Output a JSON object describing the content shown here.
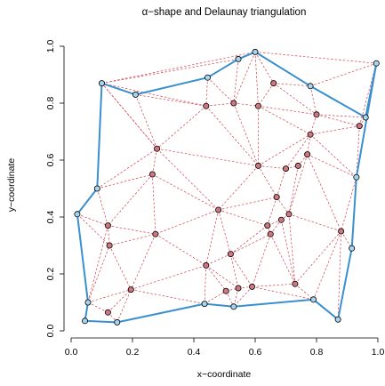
{
  "chart_data": {
    "type": "scatter",
    "title": "α−shape and Delaunay triangulation",
    "xlabel": "x−coordinate",
    "ylabel": "y−coordinate",
    "xlim": [
      0.0,
      1.0
    ],
    "ylim": [
      0.0,
      1.0
    ],
    "x_ticks": [
      0.0,
      0.2,
      0.4,
      0.6,
      0.8,
      1.0
    ],
    "y_ticks": [
      0.0,
      0.2,
      0.4,
      0.6,
      0.8,
      1.0
    ],
    "x_tick_labels": [
      "0.0",
      "0.2",
      "0.4",
      "0.6",
      "0.8",
      "1.0"
    ],
    "y_tick_labels": [
      "0.0",
      "0.2",
      "0.4",
      "0.6",
      "0.8",
      "1.0"
    ],
    "grid": false,
    "colors": {
      "alpha_shape": "#3a8fce",
      "delaunay": "#d04050",
      "hull_point_fill": "#a8d4ee",
      "interior_point_fill": "#d07880"
    },
    "hull_points": [
      [
        0.1,
        0.87
      ],
      [
        0.21,
        0.83
      ],
      [
        0.445,
        0.89
      ],
      [
        0.545,
        0.955
      ],
      [
        0.6,
        0.98
      ],
      [
        0.78,
        0.86
      ],
      [
        0.96,
        0.75
      ],
      [
        0.995,
        0.94
      ],
      [
        0.93,
        0.54
      ],
      [
        0.915,
        0.29
      ],
      [
        0.87,
        0.04
      ],
      [
        0.79,
        0.11
      ],
      [
        0.53,
        0.085
      ],
      [
        0.435,
        0.095
      ],
      [
        0.15,
        0.03
      ],
      [
        0.045,
        0.035
      ],
      [
        0.055,
        0.1
      ],
      [
        0.02,
        0.41
      ],
      [
        0.085,
        0.5
      ]
    ],
    "interior_points": [
      [
        0.44,
        0.79
      ],
      [
        0.53,
        0.8
      ],
      [
        0.61,
        0.79
      ],
      [
        0.66,
        0.87
      ],
      [
        0.8,
        0.76
      ],
      [
        0.94,
        0.72
      ],
      [
        0.78,
        0.69
      ],
      [
        0.77,
        0.62
      ],
      [
        0.28,
        0.64
      ],
      [
        0.265,
        0.55
      ],
      [
        0.61,
        0.58
      ],
      [
        0.7,
        0.57
      ],
      [
        0.74,
        0.58
      ],
      [
        0.67,
        0.47
      ],
      [
        0.71,
        0.41
      ],
      [
        0.685,
        0.39
      ],
      [
        0.48,
        0.425
      ],
      [
        0.12,
        0.37
      ],
      [
        0.125,
        0.3
      ],
      [
        0.275,
        0.34
      ],
      [
        0.64,
        0.37
      ],
      [
        0.65,
        0.34
      ],
      [
        0.88,
        0.35
      ],
      [
        0.52,
        0.27
      ],
      [
        0.44,
        0.23
      ],
      [
        0.73,
        0.165
      ],
      [
        0.505,
        0.14
      ],
      [
        0.545,
        0.15
      ],
      [
        0.59,
        0.155
      ],
      [
        0.195,
        0.145
      ],
      [
        0.12,
        0.065
      ]
    ],
    "alpha_shape_edges": [
      [
        0.1,
        0.87,
        0.21,
        0.83
      ],
      [
        0.21,
        0.83,
        0.445,
        0.89
      ],
      [
        0.445,
        0.89,
        0.545,
        0.955
      ],
      [
        0.545,
        0.955,
        0.6,
        0.98
      ],
      [
        0.6,
        0.98,
        0.78,
        0.86
      ],
      [
        0.78,
        0.86,
        0.96,
        0.75
      ],
      [
        0.96,
        0.75,
        0.995,
        0.94
      ],
      [
        0.995,
        0.94,
        0.93,
        0.54
      ],
      [
        0.93,
        0.54,
        0.915,
        0.29
      ],
      [
        0.915,
        0.29,
        0.87,
        0.04
      ],
      [
        0.87,
        0.04,
        0.79,
        0.11
      ],
      [
        0.79,
        0.11,
        0.53,
        0.085
      ],
      [
        0.53,
        0.085,
        0.435,
        0.095
      ],
      [
        0.435,
        0.095,
        0.15,
        0.03
      ],
      [
        0.15,
        0.03,
        0.045,
        0.035
      ],
      [
        0.045,
        0.035,
        0.055,
        0.1
      ],
      [
        0.055,
        0.1,
        0.02,
        0.41
      ],
      [
        0.02,
        0.41,
        0.085,
        0.5
      ],
      [
        0.085,
        0.5,
        0.1,
        0.87
      ]
    ],
    "delaunay_edges": [
      [
        0.1,
        0.87,
        0.6,
        0.98
      ],
      [
        0.6,
        0.98,
        0.995,
        0.94
      ],
      [
        0.1,
        0.87,
        0.545,
        0.955
      ],
      [
        0.21,
        0.83,
        0.44,
        0.79
      ],
      [
        0.1,
        0.87,
        0.44,
        0.79
      ],
      [
        0.445,
        0.89,
        0.44,
        0.79
      ],
      [
        0.445,
        0.89,
        0.53,
        0.8
      ],
      [
        0.545,
        0.955,
        0.53,
        0.8
      ],
      [
        0.6,
        0.98,
        0.53,
        0.8
      ],
      [
        0.6,
        0.98,
        0.61,
        0.79
      ],
      [
        0.6,
        0.98,
        0.66,
        0.87
      ],
      [
        0.66,
        0.87,
        0.78,
        0.86
      ],
      [
        0.66,
        0.87,
        0.61,
        0.79
      ],
      [
        0.66,
        0.87,
        0.8,
        0.76
      ],
      [
        0.78,
        0.86,
        0.8,
        0.76
      ],
      [
        0.78,
        0.86,
        0.995,
        0.94
      ],
      [
        0.44,
        0.79,
        0.53,
        0.8
      ],
      [
        0.53,
        0.8,
        0.61,
        0.79
      ],
      [
        0.61,
        0.79,
        0.8,
        0.76
      ],
      [
        0.8,
        0.76,
        0.96,
        0.75
      ],
      [
        0.8,
        0.76,
        0.94,
        0.72
      ],
      [
        0.94,
        0.72,
        0.96,
        0.75
      ],
      [
        0.94,
        0.72,
        0.995,
        0.94
      ],
      [
        0.94,
        0.72,
        0.93,
        0.54
      ],
      [
        0.8,
        0.76,
        0.78,
        0.69
      ],
      [
        0.78,
        0.69,
        0.94,
        0.72
      ],
      [
        0.78,
        0.69,
        0.77,
        0.62
      ],
      [
        0.77,
        0.62,
        0.93,
        0.54
      ],
      [
        0.78,
        0.69,
        0.93,
        0.54
      ],
      [
        0.61,
        0.79,
        0.78,
        0.69
      ],
      [
        0.61,
        0.79,
        0.61,
        0.58
      ],
      [
        0.53,
        0.8,
        0.61,
        0.58
      ],
      [
        0.44,
        0.79,
        0.61,
        0.58
      ],
      [
        0.44,
        0.79,
        0.28,
        0.64
      ],
      [
        0.21,
        0.83,
        0.28,
        0.64
      ],
      [
        0.1,
        0.87,
        0.28,
        0.64
      ],
      [
        0.085,
        0.5,
        0.28,
        0.64
      ],
      [
        0.085,
        0.5,
        0.265,
        0.55
      ],
      [
        0.28,
        0.64,
        0.265,
        0.55
      ],
      [
        0.28,
        0.64,
        0.61,
        0.58
      ],
      [
        0.265,
        0.55,
        0.48,
        0.425
      ],
      [
        0.28,
        0.64,
        0.48,
        0.425
      ],
      [
        0.61,
        0.58,
        0.7,
        0.57
      ],
      [
        0.7,
        0.57,
        0.74,
        0.58
      ],
      [
        0.74,
        0.58,
        0.77,
        0.62
      ],
      [
        0.7,
        0.57,
        0.78,
        0.69
      ],
      [
        0.61,
        0.58,
        0.78,
        0.69
      ],
      [
        0.61,
        0.58,
        0.67,
        0.47
      ],
      [
        0.7,
        0.57,
        0.67,
        0.47
      ],
      [
        0.67,
        0.47,
        0.71,
        0.41
      ],
      [
        0.74,
        0.58,
        0.71,
        0.41
      ],
      [
        0.77,
        0.62,
        0.71,
        0.41
      ],
      [
        0.77,
        0.62,
        0.88,
        0.35
      ],
      [
        0.71,
        0.41,
        0.88,
        0.35
      ],
      [
        0.93,
        0.54,
        0.88,
        0.35
      ],
      [
        0.88,
        0.35,
        0.915,
        0.29
      ],
      [
        0.88,
        0.35,
        0.79,
        0.11
      ],
      [
        0.88,
        0.35,
        0.87,
        0.04
      ],
      [
        0.71,
        0.41,
        0.685,
        0.39
      ],
      [
        0.685,
        0.39,
        0.64,
        0.37
      ],
      [
        0.67,
        0.47,
        0.64,
        0.37
      ],
      [
        0.64,
        0.37,
        0.65,
        0.34
      ],
      [
        0.65,
        0.34,
        0.685,
        0.39
      ],
      [
        0.61,
        0.58,
        0.48,
        0.425
      ],
      [
        0.48,
        0.425,
        0.67,
        0.47
      ],
      [
        0.48,
        0.425,
        0.64,
        0.37
      ],
      [
        0.48,
        0.425,
        0.52,
        0.27
      ],
      [
        0.48,
        0.425,
        0.44,
        0.23
      ],
      [
        0.48,
        0.425,
        0.275,
        0.34
      ],
      [
        0.265,
        0.55,
        0.275,
        0.34
      ],
      [
        0.265,
        0.55,
        0.12,
        0.37
      ],
      [
        0.085,
        0.5,
        0.12,
        0.37
      ],
      [
        0.02,
        0.41,
        0.12,
        0.37
      ],
      [
        0.02,
        0.41,
        0.125,
        0.3
      ],
      [
        0.12,
        0.37,
        0.125,
        0.3
      ],
      [
        0.12,
        0.37,
        0.275,
        0.34
      ],
      [
        0.125,
        0.3,
        0.275,
        0.34
      ],
      [
        0.125,
        0.3,
        0.195,
        0.145
      ],
      [
        0.275,
        0.34,
        0.195,
        0.145
      ],
      [
        0.275,
        0.34,
        0.44,
        0.23
      ],
      [
        0.055,
        0.1,
        0.125,
        0.3
      ],
      [
        0.055,
        0.1,
        0.195,
        0.145
      ],
      [
        0.055,
        0.1,
        0.12,
        0.065
      ],
      [
        0.12,
        0.065,
        0.195,
        0.145
      ],
      [
        0.12,
        0.065,
        0.15,
        0.03
      ],
      [
        0.15,
        0.03,
        0.195,
        0.145
      ],
      [
        0.195,
        0.145,
        0.435,
        0.095
      ],
      [
        0.195,
        0.145,
        0.44,
        0.23
      ],
      [
        0.44,
        0.23,
        0.435,
        0.095
      ],
      [
        0.44,
        0.23,
        0.505,
        0.14
      ],
      [
        0.435,
        0.095,
        0.505,
        0.14
      ],
      [
        0.505,
        0.14,
        0.53,
        0.085
      ],
      [
        0.505,
        0.14,
        0.545,
        0.15
      ],
      [
        0.545,
        0.15,
        0.53,
        0.085
      ],
      [
        0.545,
        0.15,
        0.59,
        0.155
      ],
      [
        0.59,
        0.155,
        0.53,
        0.085
      ],
      [
        0.52,
        0.27,
        0.545,
        0.15
      ],
      [
        0.52,
        0.27,
        0.59,
        0.155
      ],
      [
        0.52,
        0.27,
        0.44,
        0.23
      ],
      [
        0.52,
        0.27,
        0.64,
        0.37
      ],
      [
        0.52,
        0.27,
        0.65,
        0.34
      ],
      [
        0.65,
        0.34,
        0.59,
        0.155
      ],
      [
        0.65,
        0.34,
        0.73,
        0.165
      ],
      [
        0.685,
        0.39,
        0.73,
        0.165
      ],
      [
        0.71,
        0.41,
        0.73,
        0.165
      ],
      [
        0.73,
        0.165,
        0.88,
        0.35
      ],
      [
        0.73,
        0.165,
        0.79,
        0.11
      ],
      [
        0.73,
        0.165,
        0.59,
        0.155
      ],
      [
        0.59,
        0.155,
        0.79,
        0.11
      ],
      [
        0.915,
        0.29,
        0.93,
        0.54
      ],
      [
        0.93,
        0.54,
        0.995,
        0.94
      ],
      [
        0.12,
        0.37,
        0.055,
        0.1
      ],
      [
        0.28,
        0.64,
        0.1,
        0.87
      ],
      [
        0.44,
        0.23,
        0.545,
        0.15
      ]
    ]
  }
}
